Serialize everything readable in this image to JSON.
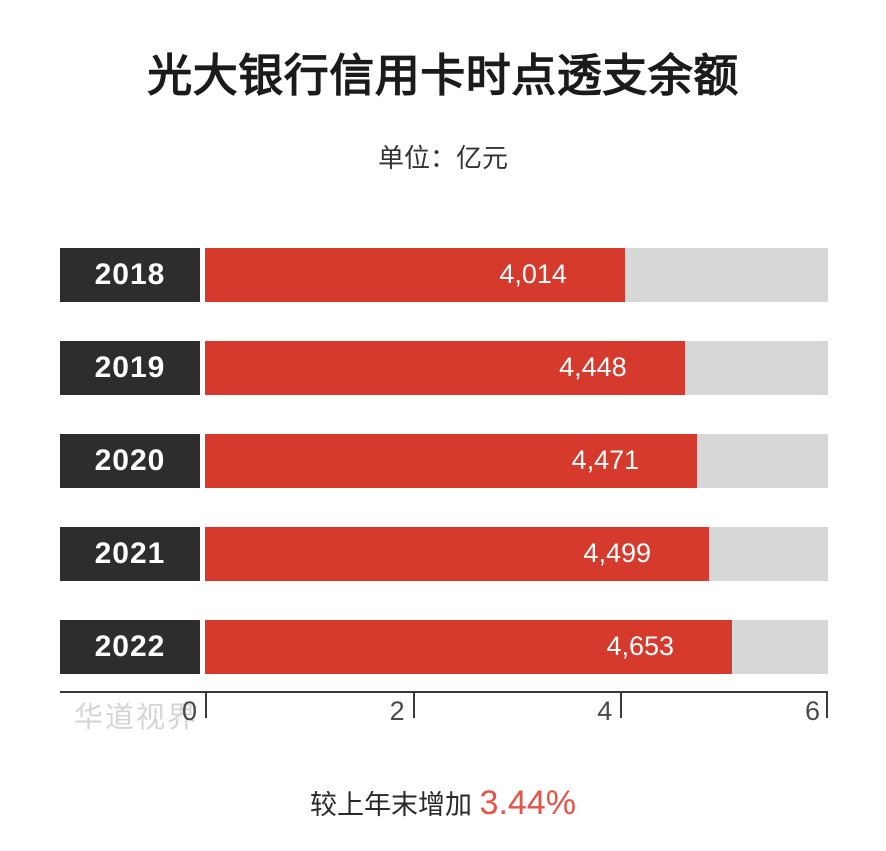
{
  "header": {
    "title": "光大银行信用卡时点透支余额",
    "unit_label": "单位：亿元"
  },
  "watermark": "华道视界",
  "footer": {
    "note_prefix": "较上年末增加 ",
    "growth_value": "3.44%"
  },
  "colors": {
    "bar": "#d63a2c",
    "year_box": "#2d2d2d",
    "track": "#d6d7d7",
    "accent_pct": "#e65348",
    "axis": "#3a3a3a",
    "watermark": "#d5d5d5"
  },
  "chart_data": {
    "type": "bar",
    "orientation": "horizontal",
    "title": "光大银行信用卡时点透支余额",
    "unit": "亿元",
    "categories": [
      "2018",
      "2019",
      "2020",
      "2021",
      "2022"
    ],
    "values": [
      4014,
      4448,
      4471,
      4499,
      4653
    ],
    "value_labels": [
      "4,014",
      "4,448",
      "4,471",
      "4,499",
      "4,653"
    ],
    "axis": {
      "ticks": [
        "0",
        "2",
        "4",
        "6"
      ],
      "range": [
        0,
        6
      ]
    },
    "legend": "none",
    "grid": "off",
    "bar_fractions": [
      0.674,
      0.77,
      0.79,
      0.809,
      0.846
    ]
  }
}
